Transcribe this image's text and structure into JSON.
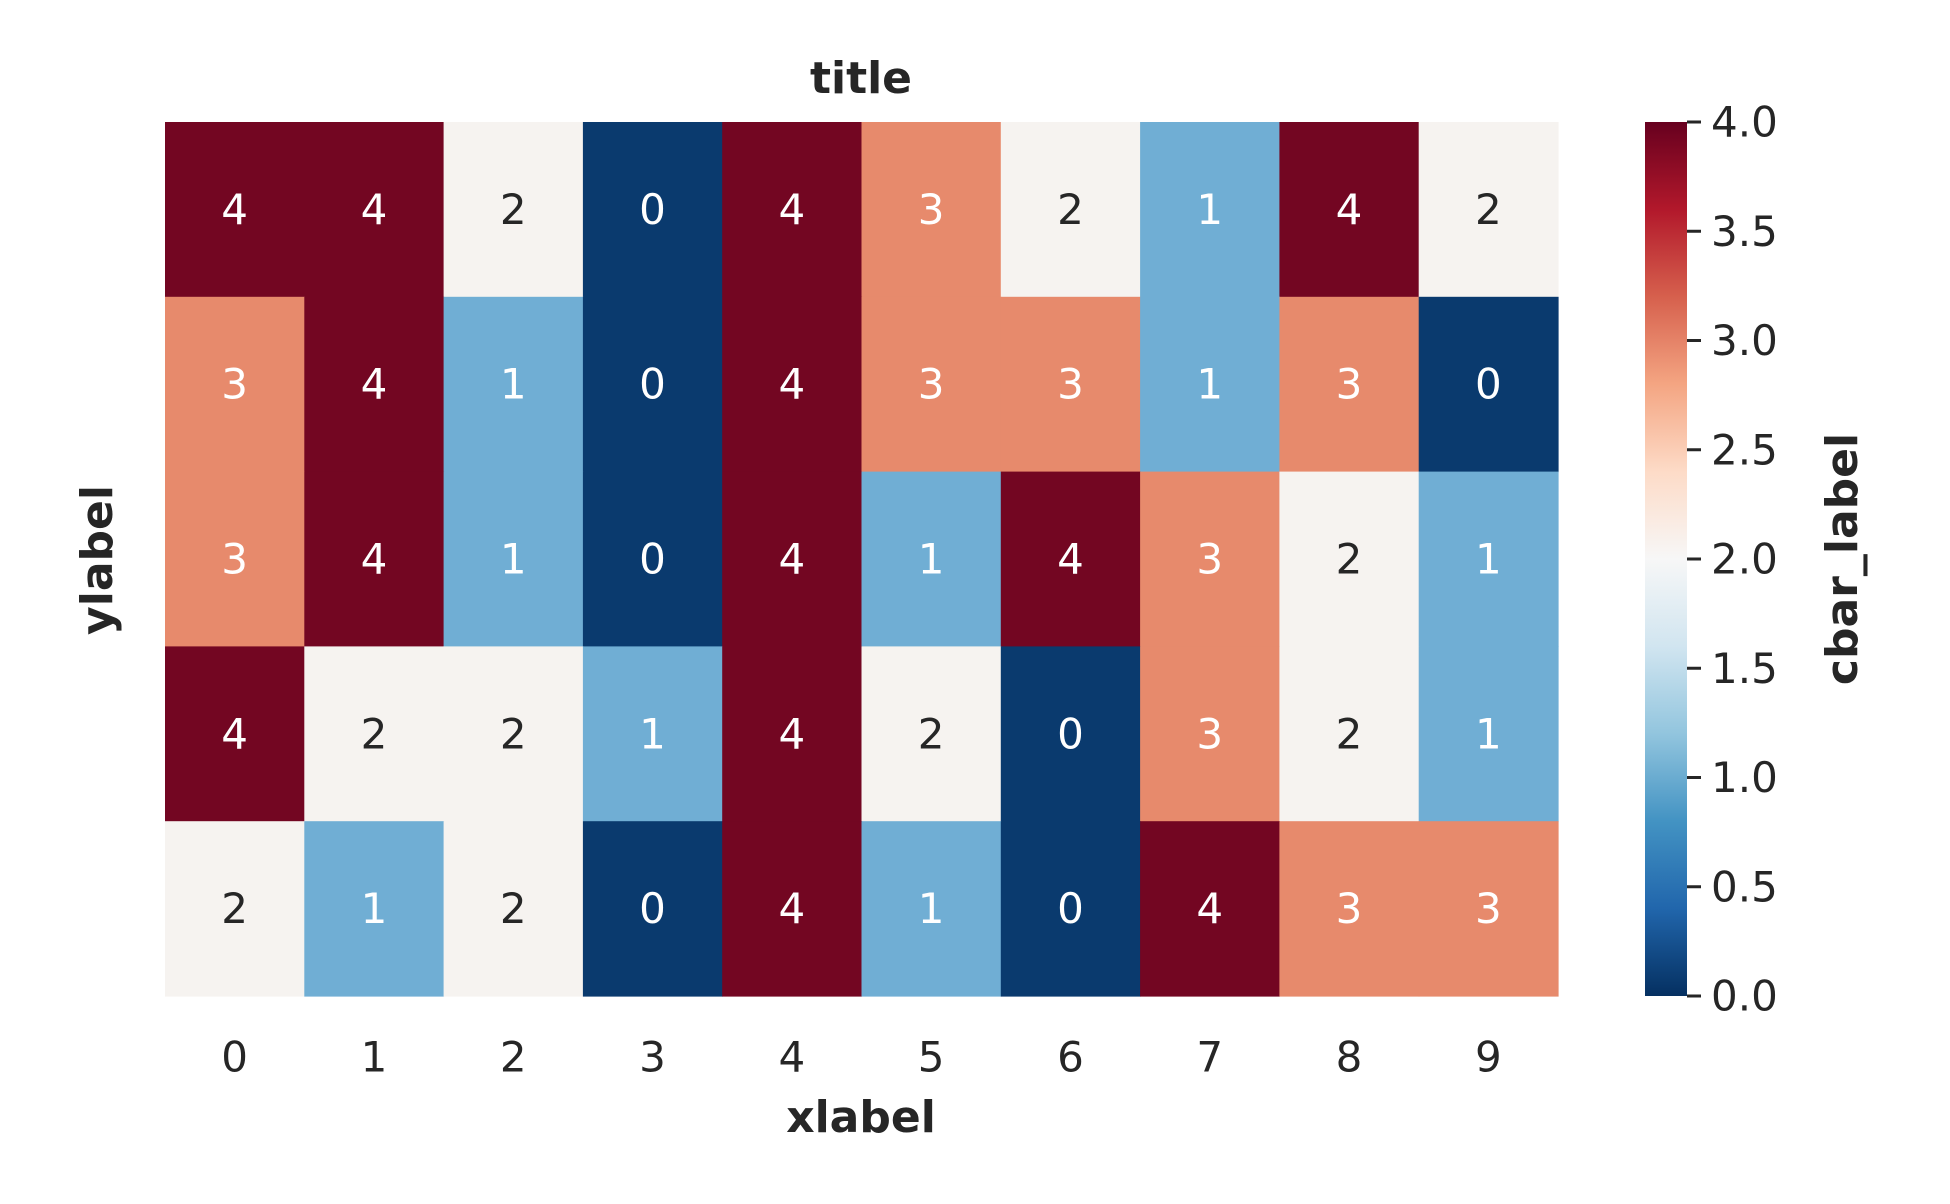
{
  "chart_data": {
    "type": "heatmap",
    "title": "title",
    "xlabel": "xlabel",
    "ylabel": "ylabel",
    "x_categories": [
      "0",
      "1",
      "2",
      "3",
      "4",
      "5",
      "6",
      "7",
      "8",
      "9"
    ],
    "y_categories": [
      "",
      "",
      "",
      "",
      ""
    ],
    "values": [
      [
        4,
        4,
        2,
        0,
        4,
        3,
        2,
        1,
        4,
        2
      ],
      [
        3,
        4,
        1,
        0,
        4,
        3,
        3,
        1,
        3,
        0
      ],
      [
        3,
        4,
        1,
        0,
        4,
        1,
        4,
        3,
        2,
        1
      ],
      [
        4,
        2,
        2,
        1,
        4,
        2,
        0,
        3,
        2,
        1
      ],
      [
        2,
        1,
        2,
        0,
        4,
        1,
        0,
        4,
        3,
        3
      ]
    ],
    "annotated": true,
    "colormap": "RdBu_r",
    "vmin": 0,
    "vmax": 4,
    "colorbar": {
      "label": "cbar_label",
      "ticks": [
        "0.0",
        "0.5",
        "1.0",
        "1.5",
        "2.0",
        "2.5",
        "3.0",
        "3.5",
        "4.0"
      ]
    },
    "cell_colors": {
      "0": "#0a3a6e",
      "1": "#70aed4",
      "2": "#f6f3f0",
      "3": "#e78a6c",
      "4": "#730622"
    },
    "grid": false
  }
}
